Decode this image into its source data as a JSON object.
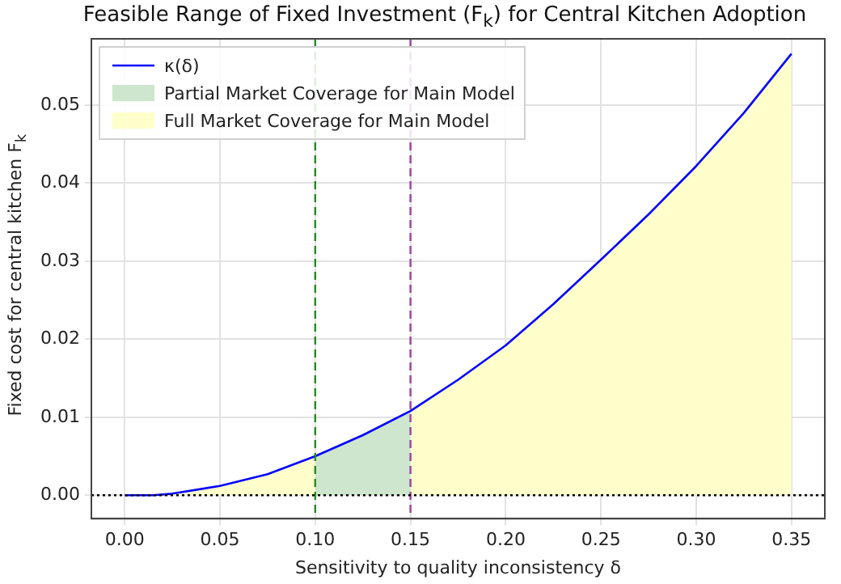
{
  "chart_data": {
    "type": "line",
    "title": "Feasible Range of Fixed Investment (F$_{k}$) for Central Kitchen Adoption",
    "xlabel": "Sensitivity to quality inconsistency δ",
    "ylabel": "Fixed cost for central kitchen F$_{k}$",
    "series": [
      {
        "name": "κ(δ)",
        "type": "line",
        "color": "#0000ff",
        "x": [
          0,
          0.015,
          0.025,
          0.05,
          0.075,
          0.1,
          0.125,
          0.15,
          0.175,
          0.2,
          0.225,
          0.25,
          0.275,
          0.3,
          0.325,
          0.35
        ],
        "values": [
          0,
          0,
          0.0002,
          0.0012,
          0.0027,
          0.005,
          0.0077,
          0.0108,
          0.0148,
          0.0192,
          0.0245,
          0.0302,
          0.036,
          0.0422,
          0.049,
          0.0566
        ]
      },
      {
        "name": "Partial Market Coverage for Main Model",
        "type": "area",
        "color": "#cde6cd",
        "x": [
          0.1,
          0.125,
          0.15
        ],
        "values": [
          0.005,
          0.0077,
          0.0108
        ]
      },
      {
        "name": "Full Market Coverage for Main Model",
        "type": "area",
        "color": "#ffffcc",
        "x": [
          0,
          0.015,
          0.025,
          0.05,
          0.075,
          0.1,
          0.125,
          0.15,
          0.175,
          0.2,
          0.225,
          0.25,
          0.275,
          0.3,
          0.325,
          0.35
        ],
        "values": [
          0,
          0,
          0.0002,
          0.0012,
          0.0027,
          0.005,
          null,
          0.0108,
          0.0148,
          0.0192,
          0.0245,
          0.0302,
          0.036,
          0.0422,
          0.049,
          0.0566
        ]
      }
    ],
    "xlim": [
      -0.0175,
      0.3675
    ],
    "ylim": [
      -0.003,
      0.0585
    ],
    "xticks": [
      {
        "value": 0,
        "label": "0.00"
      },
      {
        "value": 0.05,
        "label": "0.05"
      },
      {
        "value": 0.1,
        "label": "0.10"
      },
      {
        "value": 0.15,
        "label": "0.15"
      },
      {
        "value": 0.2,
        "label": "0.20"
      },
      {
        "value": 0.25,
        "label": "0.25"
      },
      {
        "value": 0.3,
        "label": "0.30"
      },
      {
        "value": 0.35,
        "label": "0.35"
      }
    ],
    "yticks": [
      {
        "value": 0,
        "label": "0.00"
      },
      0.01,
      0.02,
      0.03,
      0.04,
      0.05
    ],
    "ref_lines": [
      {
        "axis": "x",
        "value": 0.1,
        "color": "#228b22",
        "line_style": "dashed"
      },
      {
        "axis": "x",
        "value": 0.15,
        "color": "#a040a0",
        "line_style": "dashed"
      },
      {
        "axis": "y",
        "value": 0,
        "color": "#000000",
        "line_style": "dotted"
      }
    ],
    "grid": true,
    "legend": "top left",
    "marker": "none",
    "line_style": "solid"
  }
}
